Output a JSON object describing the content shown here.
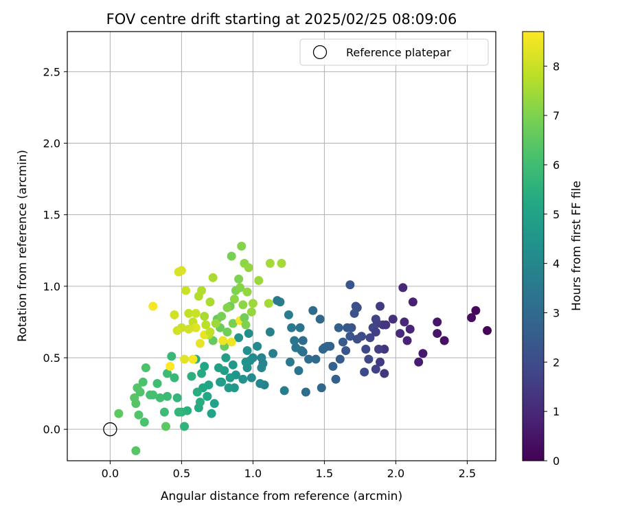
{
  "chart_data": {
    "type": "scatter",
    "title": "FOV centre drift starting at 2025/02/25 08:09:06",
    "xlabel": "Angular distance from reference (arcmin)",
    "ylabel": "Rotation from reference (arcmin)",
    "xlim": [
      -0.3,
      2.7
    ],
    "ylim": [
      -0.22,
      2.78
    ],
    "x_ticks": [
      0.0,
      0.5,
      1.0,
      1.5,
      2.0,
      2.5
    ],
    "y_ticks": [
      0.0,
      0.5,
      1.0,
      1.5,
      2.0,
      2.5
    ],
    "x_tick_labels": [
      "0.0",
      "0.5",
      "1.0",
      "1.5",
      "2.0",
      "2.5"
    ],
    "y_tick_labels": [
      "0.0",
      "0.5",
      "1.0",
      "1.5",
      "2.0",
      "2.5"
    ],
    "grid": true,
    "legend": {
      "position": "top-right",
      "entries": [
        "Reference platepar"
      ]
    },
    "reference_point": {
      "name": "Reference platepar",
      "x": 0.0,
      "y": 0.0,
      "marker": "open-circle"
    },
    "colorbar": {
      "label": "Hours from first FF file",
      "min": 0,
      "max": 8.7,
      "ticks": [
        0,
        1,
        2,
        3,
        4,
        5,
        6,
        7,
        8
      ],
      "tick_labels": [
        "0",
        "1",
        "2",
        "3",
        "4",
        "5",
        "6",
        "7",
        "8"
      ],
      "colormap": "viridis"
    },
    "points": [
      [
        2.64,
        0.69,
        0.1
      ],
      [
        2.56,
        0.83,
        0.2
      ],
      [
        2.53,
        0.78,
        0.3
      ],
      [
        2.34,
        0.62,
        0.4
      ],
      [
        2.29,
        0.67,
        0.5
      ],
      [
        2.29,
        0.75,
        0.5
      ],
      [
        2.19,
        0.53,
        0.6
      ],
      [
        2.16,
        0.47,
        0.7
      ],
      [
        2.12,
        0.89,
        0.8
      ],
      [
        2.1,
        0.7,
        0.9
      ],
      [
        2.08,
        0.62,
        0.9
      ],
      [
        2.06,
        0.75,
        1.0
      ],
      [
        2.05,
        0.99,
        1.0
      ],
      [
        2.03,
        0.67,
        1.1
      ],
      [
        1.98,
        0.77,
        1.2
      ],
      [
        1.93,
        0.73,
        1.3
      ],
      [
        1.92,
        0.56,
        1.3
      ],
      [
        1.92,
        0.39,
        1.4
      ],
      [
        1.91,
        0.73,
        1.4
      ],
      [
        1.89,
        0.86,
        1.5
      ],
      [
        1.89,
        0.47,
        1.5
      ],
      [
        1.88,
        0.56,
        1.6
      ],
      [
        1.87,
        0.74,
        1.6
      ],
      [
        1.86,
        0.77,
        1.7
      ],
      [
        1.86,
        0.42,
        1.7
      ],
      [
        1.84,
        0.71,
        1.8
      ],
      [
        1.82,
        0.64,
        1.8
      ],
      [
        1.81,
        0.49,
        1.9
      ],
      [
        1.79,
        0.56,
        1.9
      ],
      [
        1.78,
        0.4,
        2.0
      ],
      [
        1.76,
        0.65,
        2.0
      ],
      [
        1.73,
        0.85,
        2.1
      ],
      [
        1.72,
        0.86,
        2.1
      ],
      [
        1.71,
        0.81,
        2.2
      ],
      [
        1.69,
        0.71,
        2.2
      ],
      [
        1.68,
        0.65,
        2.3
      ],
      [
        1.68,
        1.01,
        2.3
      ],
      [
        1.66,
        0.71,
        2.4
      ],
      [
        1.65,
        0.55,
        2.4
      ],
      [
        1.63,
        0.61,
        2.5
      ],
      [
        1.61,
        0.49,
        2.5
      ],
      [
        1.6,
        0.71,
        2.6
      ],
      [
        1.58,
        0.35,
        2.6
      ],
      [
        1.56,
        0.44,
        2.7
      ],
      [
        1.54,
        0.58,
        2.7
      ],
      [
        1.52,
        0.58,
        2.8
      ],
      [
        1.5,
        0.57,
        2.8
      ],
      [
        1.48,
        0.29,
        2.9
      ],
      [
        1.47,
        0.77,
        2.9
      ],
      [
        1.44,
        0.49,
        3.0
      ],
      [
        1.42,
        0.83,
        3.0
      ],
      [
        1.39,
        0.49,
        3.1
      ],
      [
        1.37,
        0.26,
        3.1
      ],
      [
        1.35,
        0.54,
        3.2
      ],
      [
        1.34,
        0.55,
        3.2
      ],
      [
        1.33,
        0.71,
        3.3
      ],
      [
        1.32,
        0.41,
        3.3
      ],
      [
        1.3,
        0.57,
        3.4
      ],
      [
        1.29,
        0.62,
        3.4
      ],
      [
        1.27,
        0.71,
        3.5
      ],
      [
        1.26,
        0.47,
        3.5
      ],
      [
        1.25,
        0.8,
        3.6
      ],
      [
        1.22,
        0.27,
        3.6
      ],
      [
        1.19,
        0.89,
        3.7
      ],
      [
        1.14,
        0.53,
        3.7
      ],
      [
        1.12,
        0.68,
        3.8
      ],
      [
        1.08,
        0.31,
        3.8
      ],
      [
        1.07,
        0.46,
        3.9
      ],
      [
        1.06,
        0.5,
        3.9
      ],
      [
        1.06,
        0.43,
        4.0
      ],
      [
        1.05,
        0.32,
        4.0
      ],
      [
        1.03,
        0.58,
        4.1
      ],
      [
        1.0,
        0.5,
        4.1
      ],
      [
        0.98,
        0.48,
        4.2
      ],
      [
        0.97,
        0.67,
        4.2
      ],
      [
        0.96,
        0.43,
        4.3
      ],
      [
        0.96,
        0.55,
        4.3
      ],
      [
        0.95,
        0.47,
        4.4
      ],
      [
        0.93,
        0.35,
        4.4
      ],
      [
        0.9,
        0.64,
        4.5
      ],
      [
        0.88,
        0.38,
        4.5
      ],
      [
        0.87,
        0.29,
        4.6
      ],
      [
        0.86,
        0.45,
        4.6
      ],
      [
        0.84,
        0.36,
        4.7
      ],
      [
        0.83,
        0.29,
        4.7
      ],
      [
        0.81,
        0.5,
        4.8
      ],
      [
        0.8,
        0.41,
        4.8
      ],
      [
        0.78,
        0.33,
        4.9
      ],
      [
        0.76,
        0.43,
        4.9
      ],
      [
        0.73,
        0.18,
        5.0
      ],
      [
        0.71,
        0.11,
        5.0
      ],
      [
        0.69,
        0.31,
        5.1
      ],
      [
        0.68,
        0.23,
        5.1
      ],
      [
        0.66,
        0.44,
        5.2
      ],
      [
        0.65,
        0.29,
        5.2
      ],
      [
        0.64,
        0.39,
        5.3
      ],
      [
        0.62,
        0.15,
        5.3
      ],
      [
        0.61,
        0.26,
        5.4
      ],
      [
        0.6,
        0.49,
        5.4
      ],
      [
        0.57,
        0.37,
        5.5
      ],
      [
        0.54,
        0.13,
        5.5
      ],
      [
        0.52,
        0.02,
        5.6
      ],
      [
        0.5,
        0.12,
        5.6
      ],
      [
        0.48,
        0.12,
        5.7
      ],
      [
        0.47,
        0.22,
        5.7
      ],
      [
        0.45,
        0.36,
        5.8
      ],
      [
        0.43,
        0.51,
        5.8
      ],
      [
        0.4,
        0.39,
        5.9
      ],
      [
        0.38,
        0.12,
        5.9
      ],
      [
        0.35,
        0.22,
        6.0
      ],
      [
        0.33,
        0.32,
        6.0
      ],
      [
        0.3,
        0.24,
        6.1
      ],
      [
        0.28,
        0.24,
        6.1
      ],
      [
        0.25,
        0.43,
        6.2
      ],
      [
        0.24,
        0.05,
        6.2
      ],
      [
        0.23,
        0.33,
        6.2
      ],
      [
        0.21,
        0.26,
        6.3
      ],
      [
        0.2,
        0.1,
        6.3
      ],
      [
        0.19,
        0.29,
        6.3
      ],
      [
        0.18,
        0.18,
        6.4
      ],
      [
        0.18,
        -0.15,
        6.4
      ],
      [
        0.17,
        0.22,
        6.4
      ],
      [
        0.06,
        0.11,
        6.5
      ],
      [
        0.39,
        0.02,
        6.5
      ],
      [
        0.72,
        0.62,
        6.6
      ],
      [
        0.75,
        0.77,
        6.6
      ],
      [
        0.77,
        0.71,
        6.7
      ],
      [
        0.8,
        0.58,
        6.7
      ],
      [
        0.82,
        0.68,
        6.8
      ],
      [
        0.84,
        0.86,
        6.8
      ],
      [
        0.85,
        1.21,
        6.9
      ],
      [
        0.86,
        0.74,
        6.9
      ],
      [
        0.88,
        0.97,
        7.0
      ],
      [
        0.9,
        1.05,
        7.0
      ],
      [
        0.91,
        0.99,
        7.1
      ],
      [
        0.92,
        1.28,
        7.1
      ],
      [
        0.93,
        0.87,
        7.2
      ],
      [
        0.94,
        1.16,
        7.2
      ],
      [
        0.96,
        0.96,
        7.3
      ],
      [
        0.97,
        1.13,
        7.3
      ],
      [
        0.99,
        0.82,
        7.3
      ],
      [
        1.0,
        0.88,
        7.4
      ],
      [
        1.04,
        1.04,
        7.4
      ],
      [
        1.12,
        1.16,
        7.5
      ],
      [
        1.2,
        1.16,
        7.5
      ],
      [
        1.11,
        0.88,
        7.5
      ],
      [
        0.7,
        0.89,
        7.6
      ],
      [
        0.72,
        1.06,
        7.6
      ],
      [
        0.62,
        0.93,
        7.7
      ],
      [
        0.64,
        0.97,
        7.7
      ],
      [
        0.67,
        0.73,
        7.8
      ],
      [
        0.69,
        0.66,
        7.8
      ],
      [
        0.58,
        0.75,
        7.9
      ],
      [
        0.55,
        0.81,
        7.9
      ],
      [
        0.53,
        0.97,
        8.0
      ],
      [
        0.5,
        0.71,
        8.0
      ],
      [
        0.47,
        0.69,
        8.1
      ],
      [
        0.45,
        0.8,
        8.1
      ],
      [
        0.48,
        1.1,
        8.2
      ],
      [
        0.5,
        1.11,
        8.2
      ],
      [
        0.52,
        0.49,
        8.3
      ],
      [
        0.6,
        0.71,
        8.3
      ],
      [
        0.63,
        0.6,
        8.4
      ],
      [
        0.66,
        0.66,
        8.4
      ],
      [
        0.79,
        0.62,
        8.5
      ],
      [
        0.85,
        0.61,
        8.5
      ],
      [
        0.91,
        0.76,
        8.6
      ],
      [
        0.3,
        0.86,
        8.6
      ],
      [
        0.42,
        0.44,
        8.7
      ],
      [
        0.58,
        0.49,
        8.6
      ],
      [
        0.78,
        0.79,
        6.9
      ],
      [
        0.82,
        0.85,
        7.1
      ],
      [
        0.87,
        0.91,
        7.2
      ],
      [
        0.94,
        0.78,
        6.8
      ],
      [
        0.74,
        0.74,
        7.4
      ],
      [
        0.66,
        0.79,
        7.6
      ],
      [
        0.7,
        0.68,
        7.9
      ],
      [
        0.6,
        0.81,
        8.0
      ],
      [
        0.55,
        0.7,
        8.1
      ],
      [
        0.95,
        0.73,
        7.0
      ],
      [
        1.17,
        0.9,
        3.5
      ],
      [
        1.35,
        0.62,
        3.0
      ],
      [
        1.49,
        0.56,
        2.9
      ],
      [
        1.73,
        0.63,
        2.1
      ],
      [
        1.86,
        0.68,
        1.6
      ],
      [
        0.99,
        0.36,
        4.1
      ],
      [
        0.77,
        0.33,
        4.8
      ],
      [
        0.68,
        0.23,
        5.2
      ],
      [
        0.63,
        0.19,
        5.4
      ],
      [
        0.4,
        0.23,
        5.9
      ]
    ]
  }
}
